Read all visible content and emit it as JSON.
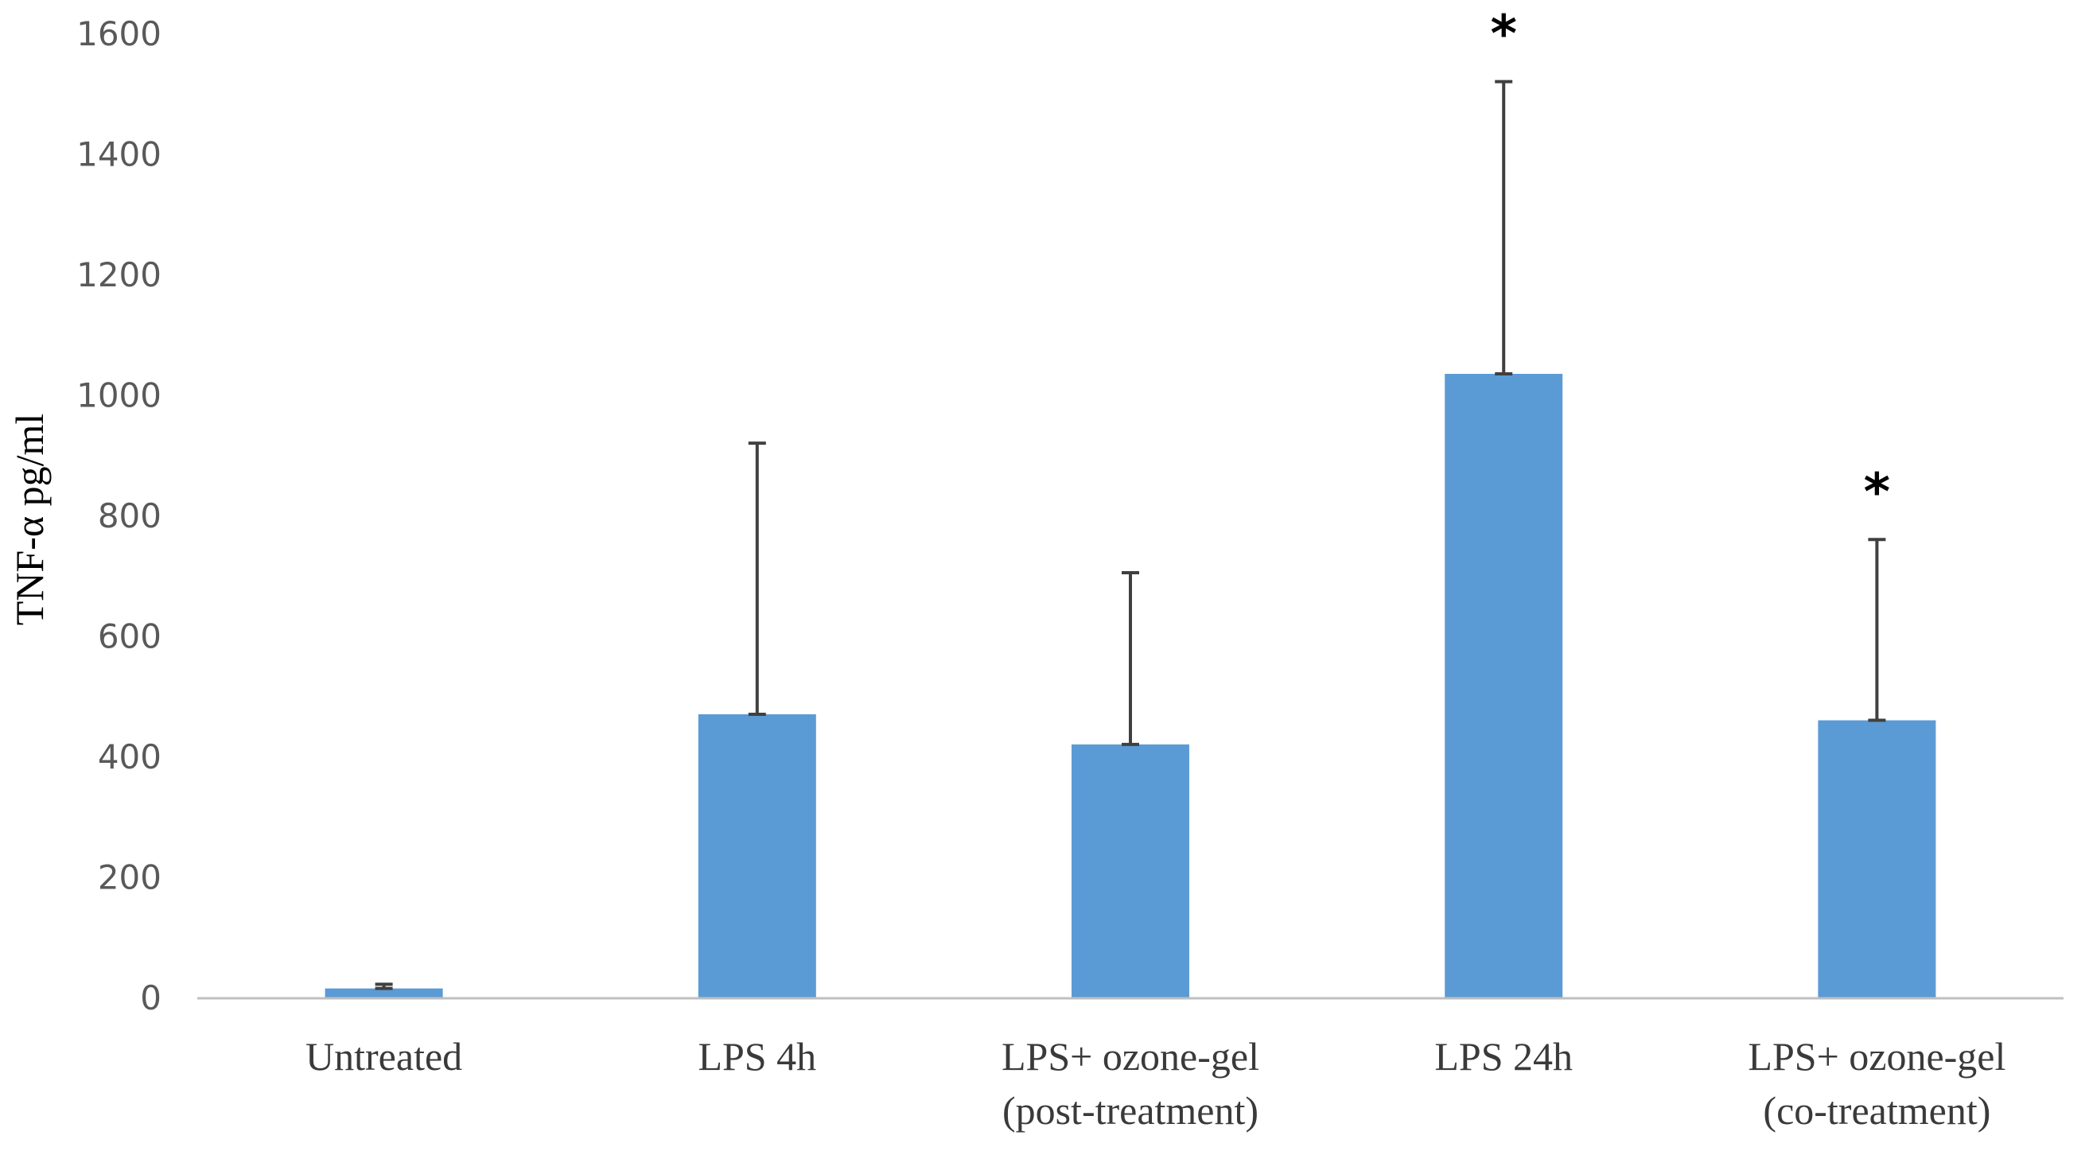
{
  "chart_data": {
    "type": "bar",
    "title": "",
    "xlabel": "",
    "ylabel": "TNF-α pg/ml",
    "ylim": [
      0,
      1600
    ],
    "yticks": [
      0,
      200,
      400,
      600,
      800,
      1000,
      1200,
      1400,
      1600
    ],
    "categories": [
      [
        "Untreated"
      ],
      [
        "LPS 4h"
      ],
      [
        "LPS+ ozone-gel",
        "(post-treatment)"
      ],
      [
        "LPS 24h"
      ],
      [
        "LPS+ ozone-gel",
        "(co-treatment)"
      ]
    ],
    "values": [
      15,
      470,
      420,
      1035,
      460
    ],
    "error_upper": [
      22,
      920,
      705,
      1520,
      760
    ],
    "significance": [
      "",
      "",
      "",
      "*",
      "*"
    ],
    "colors": {
      "bar": "#5b9bd5",
      "error_bar": "#404040",
      "axis": "#bfbfbf"
    },
    "grid": false,
    "legend": "none"
  }
}
